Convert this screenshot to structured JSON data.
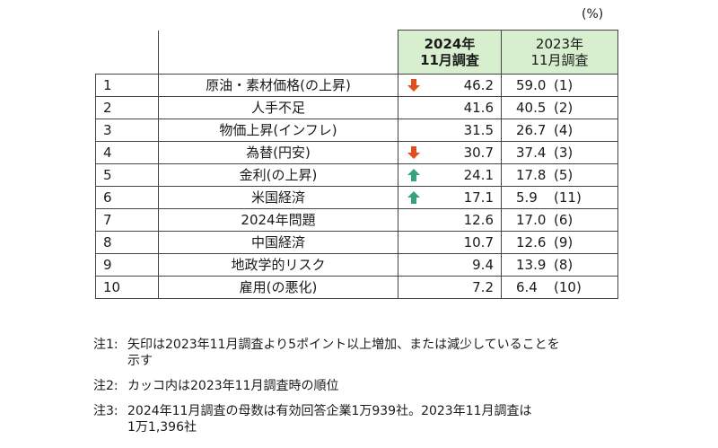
{
  "unit_label": "(%)",
  "header": {
    "col_2024_line1": "2024年",
    "col_2024_line2": "11月調査",
    "col_2023_line1": "2023年",
    "col_2023_line2": "11月調査"
  },
  "colors": {
    "up_arrow": "#3aa17e",
    "down_arrow": "#e0501e",
    "header_bg": "#d8efcf"
  },
  "rows": [
    {
      "rank": "1",
      "item": "原油・素材価格(の上昇)",
      "arrow": "down",
      "arrow_icon": "down-arrow-icon",
      "v2024": "46.2",
      "v2023": "59.0",
      "rank2023": "(1)"
    },
    {
      "rank": "2",
      "item": "人手不足",
      "arrow": "",
      "arrow_icon": "",
      "v2024": "41.6",
      "v2023": "40.5",
      "rank2023": "(2)"
    },
    {
      "rank": "3",
      "item": "物価上昇(インフレ)",
      "arrow": "",
      "arrow_icon": "",
      "v2024": "31.5",
      "v2023": "26.7",
      "rank2023": "(4)"
    },
    {
      "rank": "4",
      "item": "為替(円安)",
      "arrow": "down",
      "arrow_icon": "down-arrow-icon",
      "v2024": "30.7",
      "v2023": "37.4",
      "rank2023": "(3)"
    },
    {
      "rank": "5",
      "item": "金利(の上昇)",
      "arrow": "up",
      "arrow_icon": "up-arrow-icon",
      "v2024": "24.1",
      "v2023": "17.8",
      "rank2023": "(5)"
    },
    {
      "rank": "6",
      "item": "米国経済",
      "arrow": "up",
      "arrow_icon": "up-arrow-icon",
      "v2024": "17.1",
      "v2023": "5.9",
      "rank2023": "(11)"
    },
    {
      "rank": "7",
      "item": "2024年問題",
      "arrow": "",
      "arrow_icon": "",
      "v2024": "12.6",
      "v2023": "17.0",
      "rank2023": "(6)"
    },
    {
      "rank": "8",
      "item": "中国経済",
      "arrow": "",
      "arrow_icon": "",
      "v2024": "10.7",
      "v2023": "12.6",
      "rank2023": "(9)"
    },
    {
      "rank": "9",
      "item": "地政学的リスク",
      "arrow": "",
      "arrow_icon": "",
      "v2024": "9.4",
      "v2023": "13.9",
      "rank2023": "(8)"
    },
    {
      "rank": "10",
      "item": "雇用(の悪化)",
      "arrow": "",
      "arrow_icon": "",
      "v2024": "7.2",
      "v2023": "6.4",
      "rank2023": "(10)"
    }
  ],
  "notes": [
    {
      "label": "注1:",
      "lines": [
        "矢印は2023年11月調査より5ポイント以上増加、または減少していることを",
        "示す"
      ]
    },
    {
      "label": "注2:",
      "lines": [
        "カッコ内は2023年11月調査時の順位"
      ]
    },
    {
      "label": "注3:",
      "lines": [
        "2024年11月調査の母数は有効回答企業1万939社。2023年11月調査は",
        "1万1,396社"
      ]
    }
  ]
}
